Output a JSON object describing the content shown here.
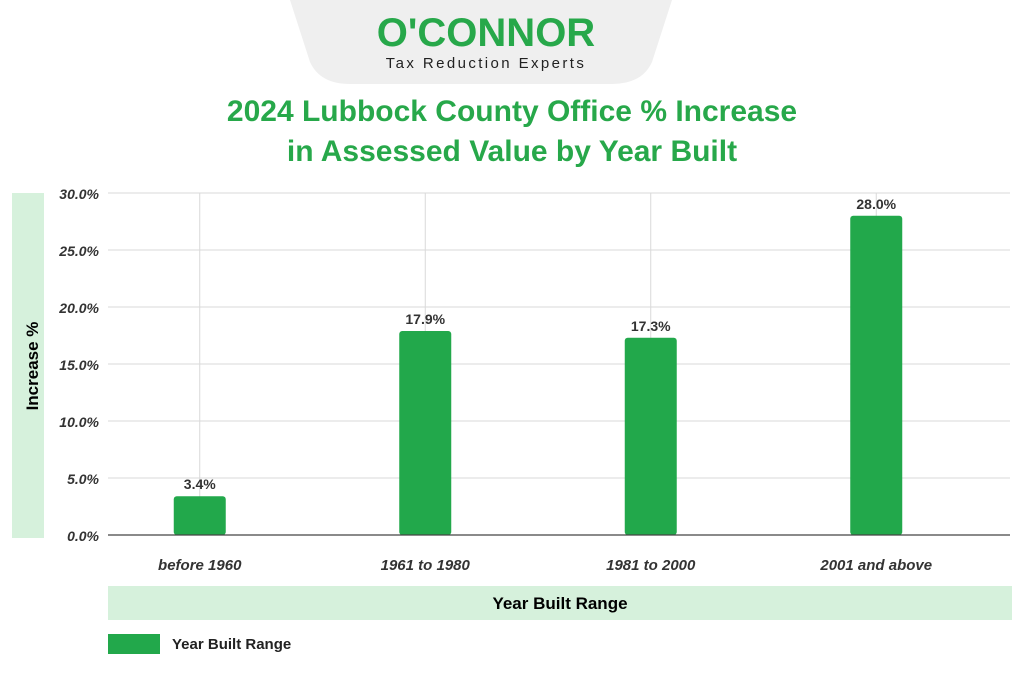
{
  "brand": {
    "name": "O'CONNOR",
    "tagline": "Tax Reduction Experts"
  },
  "colors": {
    "bar": "#22a84b",
    "title": "#27a84a",
    "band": "#d6f1dc",
    "header_bg": "#efefef",
    "axis_text": "#333333",
    "grid": "#d9d9d9"
  },
  "chart_data": {
    "type": "bar",
    "title_lines": [
      "2024 Lubbock County Office % Increase",
      "in Assessed Value by Year Built"
    ],
    "categories": [
      "before 1960",
      "1961 to 1980",
      "1981 to 2000",
      "2001 and above"
    ],
    "series": [
      {
        "name": "Year Built Range",
        "values": [
          3.4,
          17.9,
          17.3,
          28.0
        ]
      }
    ],
    "data_labels": [
      "3.4%",
      "17.9%",
      "17.3%",
      "28.0%"
    ],
    "ylim": [
      0,
      30
    ],
    "yticks": [
      0,
      5,
      10,
      15,
      20,
      25,
      30
    ],
    "ytick_labels": [
      "0.0%",
      "5.0%",
      "10.0%",
      "15.0%",
      "20.0%",
      "25.0%",
      "30.0%"
    ],
    "ylabel": "Increase %",
    "xlabel": "Year Built Range",
    "legend": "bottom-left",
    "grid": true
  }
}
